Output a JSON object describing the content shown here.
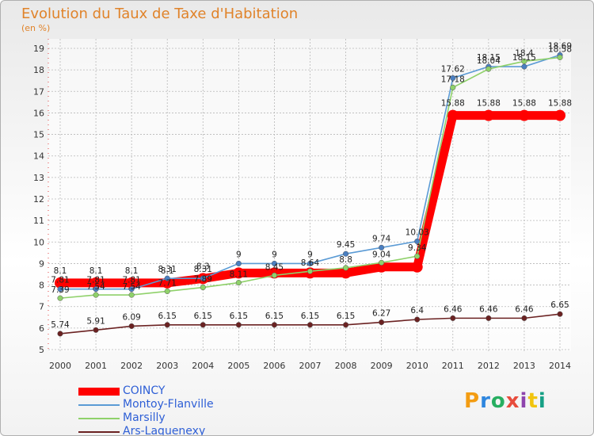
{
  "header": {
    "title": "Evolution du Taux de Taxe d'Habitation",
    "subtitle": "(en %)"
  },
  "logo": {
    "text": "Proxiti",
    "colors": [
      "#f39c12",
      "#2e86de",
      "#27ae60",
      "#e74c3c",
      "#8e44ad",
      "#f1c40f",
      "#16a085"
    ]
  },
  "chart_data": {
    "type": "line",
    "title": "Evolution du Taux de Taxe d'Habitation",
    "ylabel": "(en %)",
    "xlabel": "",
    "x": [
      "2000",
      "2001",
      "2002",
      "2003",
      "2004",
      "2005",
      "2006",
      "2007",
      "2008",
      "2009",
      "2010",
      "2011",
      "2012",
      "2013",
      "2014"
    ],
    "yticks": [
      5,
      6,
      7,
      8,
      9,
      10,
      11,
      12,
      13,
      14,
      15,
      16,
      17,
      18,
      19
    ],
    "ylim": [
      5,
      19.5
    ],
    "grid": true,
    "legend_position": "bottom-left",
    "series": [
      {
        "name": "COINCY",
        "color": "#ff0000",
        "values": [
          8.1,
          8.1,
          8.1,
          8.1,
          8.3,
          8.56,
          8.56,
          8.56,
          8.56,
          8.84,
          8.84,
          15.88,
          15.88,
          15.88,
          15.88
        ],
        "labels": [
          "8.1",
          "8.1",
          "8.1",
          "8.1",
          "8.3",
          "",
          "",
          "",
          "",
          "",
          "",
          "15.88",
          "15.88",
          "15.88",
          "15.88"
        ]
      },
      {
        "name": "Montoy-Flanville",
        "color": "#5b9bd5",
        "values": [
          7.81,
          7.81,
          7.81,
          8.31,
          8.31,
          9,
          9,
          9,
          9.45,
          9.74,
          10.03,
          17.62,
          18.15,
          18.15,
          18.69
        ],
        "labels": [
          "7.81",
          "7.81",
          "7.81",
          "8.31",
          "8.31",
          "9",
          "9",
          "9",
          "9.45",
          "9.74",
          "10.03",
          "17.62",
          "18.15",
          "18.15",
          "18.69"
        ]
      },
      {
        "name": "Marsilly",
        "color": "#8fd16a",
        "values": [
          7.39,
          7.54,
          7.54,
          7.71,
          7.89,
          8.11,
          8.45,
          8.64,
          8.8,
          9.04,
          9.34,
          17.18,
          18.04,
          18.4,
          18.58
        ],
        "labels": [
          "7.39",
          "7.54",
          "7.54",
          "7.71",
          "7.89",
          "8.11",
          "8.45",
          "8.64",
          "8.8",
          "9.04",
          "9.34",
          "17.18",
          "18.04",
          "18.4",
          "18.58"
        ]
      },
      {
        "name": "Ars-Laquenexy",
        "color": "#6b2222",
        "values": [
          5.74,
          5.91,
          6.09,
          6.15,
          6.15,
          6.15,
          6.15,
          6.15,
          6.15,
          6.27,
          6.4,
          6.46,
          6.46,
          6.46,
          6.65
        ],
        "labels": [
          "5.74",
          "5.91",
          "6.09",
          "6.15",
          "6.15",
          "6.15",
          "6.15",
          "6.15",
          "6.15",
          "6.27",
          "6.4",
          "6.46",
          "6.46",
          "6.46",
          "6.65"
        ]
      }
    ]
  }
}
